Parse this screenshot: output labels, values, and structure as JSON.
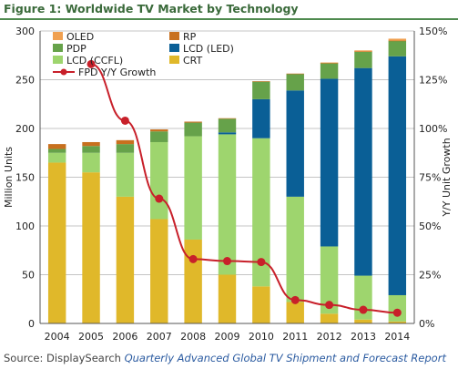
{
  "figure": {
    "title": "Figure 1: Worldwide TV Market by Technology",
    "source_prefix": "Source: DisplaySearch ",
    "source_report": "Quarterly Advanced Global TV Shipment and Forecast Report"
  },
  "colors": {
    "OLED": "#f0a050",
    "RP": "#c8701e",
    "PDP": "#66a24a",
    "LCD (LED)": "#0a5f96",
    "LCD (CCFL)": "#9ed56e",
    "CRT": "#e0b82a",
    "FPD Y/Y Growth": "#c8202a",
    "grid": "#c4c4c4",
    "axis": "#555555"
  },
  "chart_data": {
    "type": "bar",
    "stacked": true,
    "categories": [
      "2004",
      "2005",
      "2006",
      "2007",
      "2008",
      "2009",
      "2010",
      "2011",
      "2012",
      "2013",
      "2014"
    ],
    "series": [
      {
        "name": "CRT",
        "values": [
          165,
          155,
          130,
          107,
          86,
          50,
          38,
          22,
          10,
          4,
          2
        ]
      },
      {
        "name": "LCD (CCFL)",
        "values": [
          10,
          20,
          45,
          79,
          106,
          144,
          152,
          108,
          69,
          45,
          27
        ]
      },
      {
        "name": "LCD (LED)",
        "values": [
          0,
          0,
          0,
          0,
          0,
          2,
          40,
          109,
          172,
          213,
          245
        ]
      },
      {
        "name": "PDP",
        "values": [
          4,
          7,
          9,
          11,
          14,
          14,
          18,
          17,
          16,
          17,
          16
        ]
      },
      {
        "name": "RP",
        "values": [
          5,
          4,
          4,
          2,
          1,
          0.5,
          0.5,
          0.3,
          0.2,
          0.1,
          0.1
        ]
      },
      {
        "name": "OLED",
        "values": [
          0,
          0,
          0,
          0,
          0,
          0,
          0,
          0,
          0.5,
          1,
          2
        ]
      }
    ],
    "line_series": {
      "name": "FPD Y/Y Growth",
      "axis": "right",
      "x_start": "2005",
      "values": [
        133,
        104,
        64,
        33,
        32,
        31.5,
        12,
        9.5,
        7,
        5.5
      ]
    },
    "ylabel": "Million Units",
    "y2label": "Y/Y Unit Growth",
    "ylim": [
      0,
      300
    ],
    "y2lim": [
      0,
      150
    ],
    "yticks": [
      "0",
      "50",
      "100",
      "150",
      "200",
      "250",
      "300"
    ],
    "y2ticks": [
      "0%",
      "25%",
      "50%",
      "75%",
      "100%",
      "125%",
      "150%"
    ],
    "legend": {
      "placement": "top-left",
      "entries": [
        "OLED",
        "RP",
        "PDP",
        "LCD (LED)",
        "LCD (CCFL)",
        "CRT",
        "FPD Y/Y Growth"
      ]
    },
    "grid": true
  }
}
